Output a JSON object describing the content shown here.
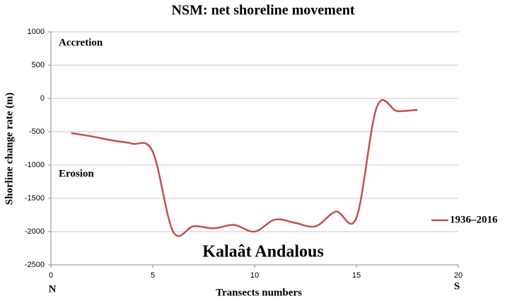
{
  "chart_data": {
    "type": "line",
    "title": "NSM: net shoreline movement",
    "x_label": "Transects numbers",
    "y_label": "Shorline change rate (m)",
    "annotations": [
      "Accretion",
      "Erosion",
      "Kalaât Andalous",
      "N",
      "S"
    ],
    "x": [
      1,
      2,
      3,
      4,
      5,
      6,
      7,
      8,
      9,
      10,
      11,
      12,
      13,
      14,
      15,
      16,
      17,
      18
    ],
    "series": [
      {
        "name": "1936–2016",
        "color": "#c0504d",
        "values": [
          -520,
          -570,
          -630,
          -680,
          -800,
          -2000,
          -1920,
          -1950,
          -1900,
          -2000,
          -1820,
          -1870,
          -1920,
          -1700,
          -1790,
          -130,
          -190,
          -170
        ]
      }
    ],
    "xlim": [
      0,
      20
    ],
    "xticks": [
      0,
      5,
      10,
      15,
      20
    ],
    "ylim": [
      -2500,
      1000
    ],
    "yticks": [
      -2500,
      -2000,
      -1500,
      -1000,
      -500,
      0,
      500,
      1000
    ],
    "grid": true,
    "legend": "right",
    "smooth": true
  }
}
